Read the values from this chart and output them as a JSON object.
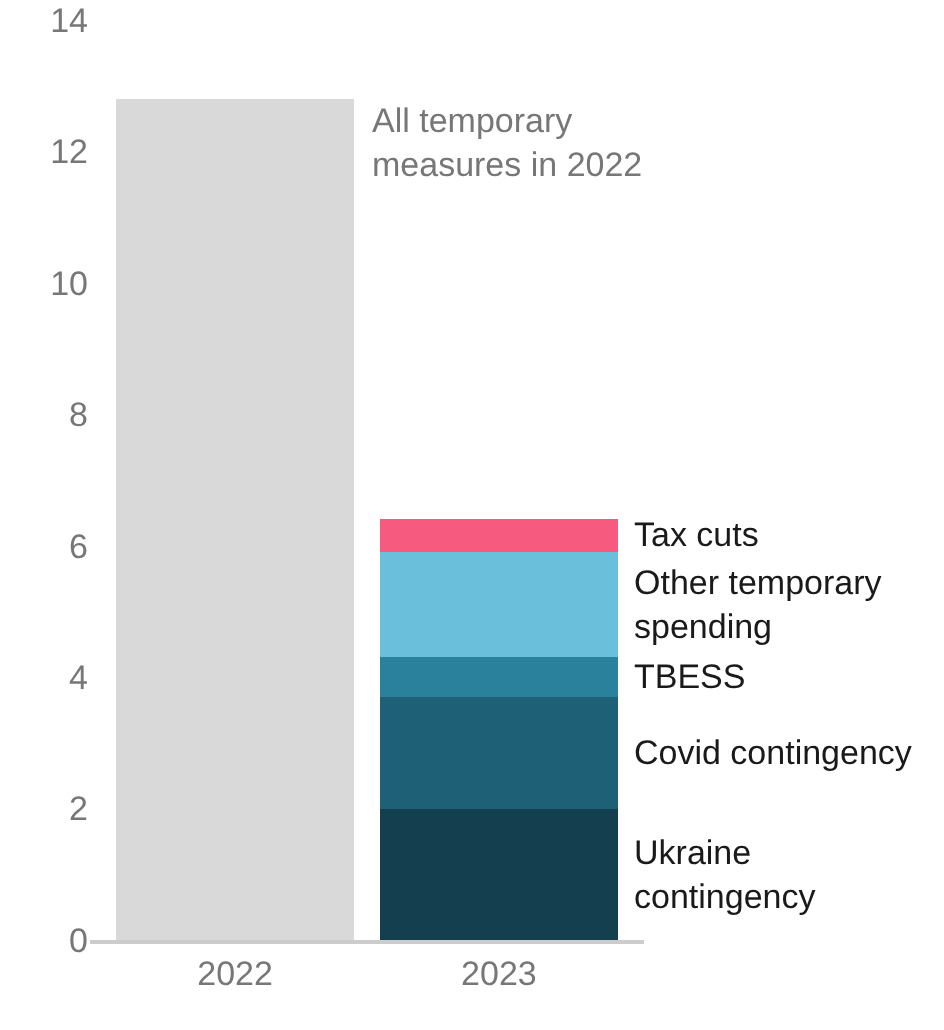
{
  "chart_data": {
    "type": "bar",
    "stacked": true,
    "categories": [
      "2022",
      "2023"
    ],
    "series": [
      {
        "name": "All temporary measures in 2022",
        "color": "#d9d9d9",
        "values": [
          12.8,
          null
        ]
      },
      {
        "name": "Ukraine contingency",
        "color": "#143f4f",
        "values": [
          null,
          2.0
        ]
      },
      {
        "name": "Covid contingency",
        "color": "#1e6176",
        "values": [
          null,
          1.7
        ]
      },
      {
        "name": "TBESS",
        "color": "#2a819b",
        "values": [
          null,
          0.6
        ]
      },
      {
        "name": "Other temporary spending",
        "color": "#6ac0db",
        "values": [
          null,
          1.6
        ]
      },
      {
        "name": "Tax cuts",
        "color": "#f75a7f",
        "values": [
          null,
          0.5
        ]
      }
    ],
    "ylim": [
      0,
      14
    ],
    "yticks": [
      0,
      2,
      4,
      6,
      8,
      10,
      12,
      14
    ],
    "grid": false,
    "legend": false
  }
}
